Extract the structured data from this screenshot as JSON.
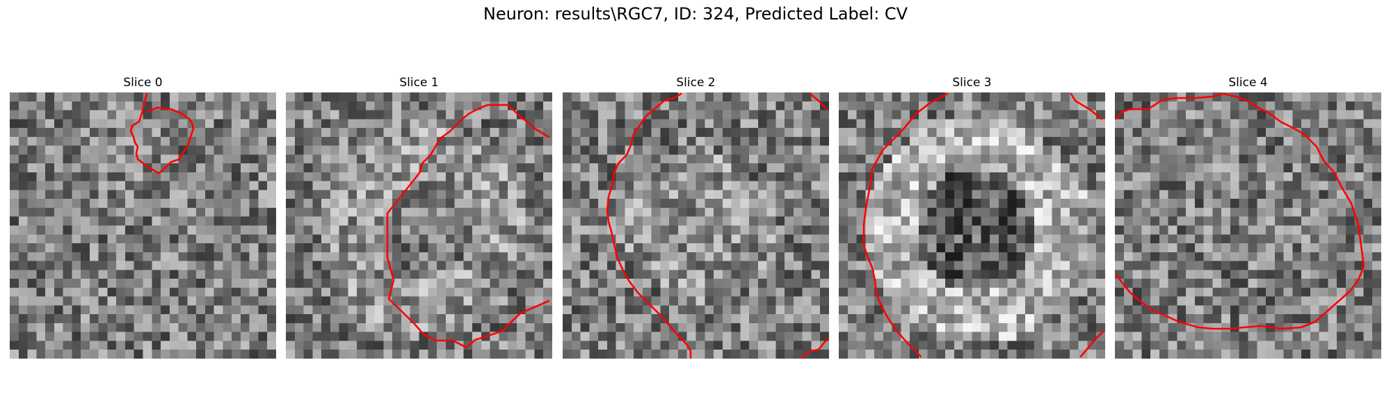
{
  "figure": {
    "title": "Neuron: results\\RGC7, ID: 324, Predicted Label: CV"
  },
  "slices": [
    {
      "label": "Slice 0"
    },
    {
      "label": "Slice 1"
    },
    {
      "label": "Slice 2"
    },
    {
      "label": "Slice 3"
    },
    {
      "label": "Slice 4"
    }
  ],
  "colors": {
    "contour": "#ff0000",
    "colormap": "gray"
  }
}
